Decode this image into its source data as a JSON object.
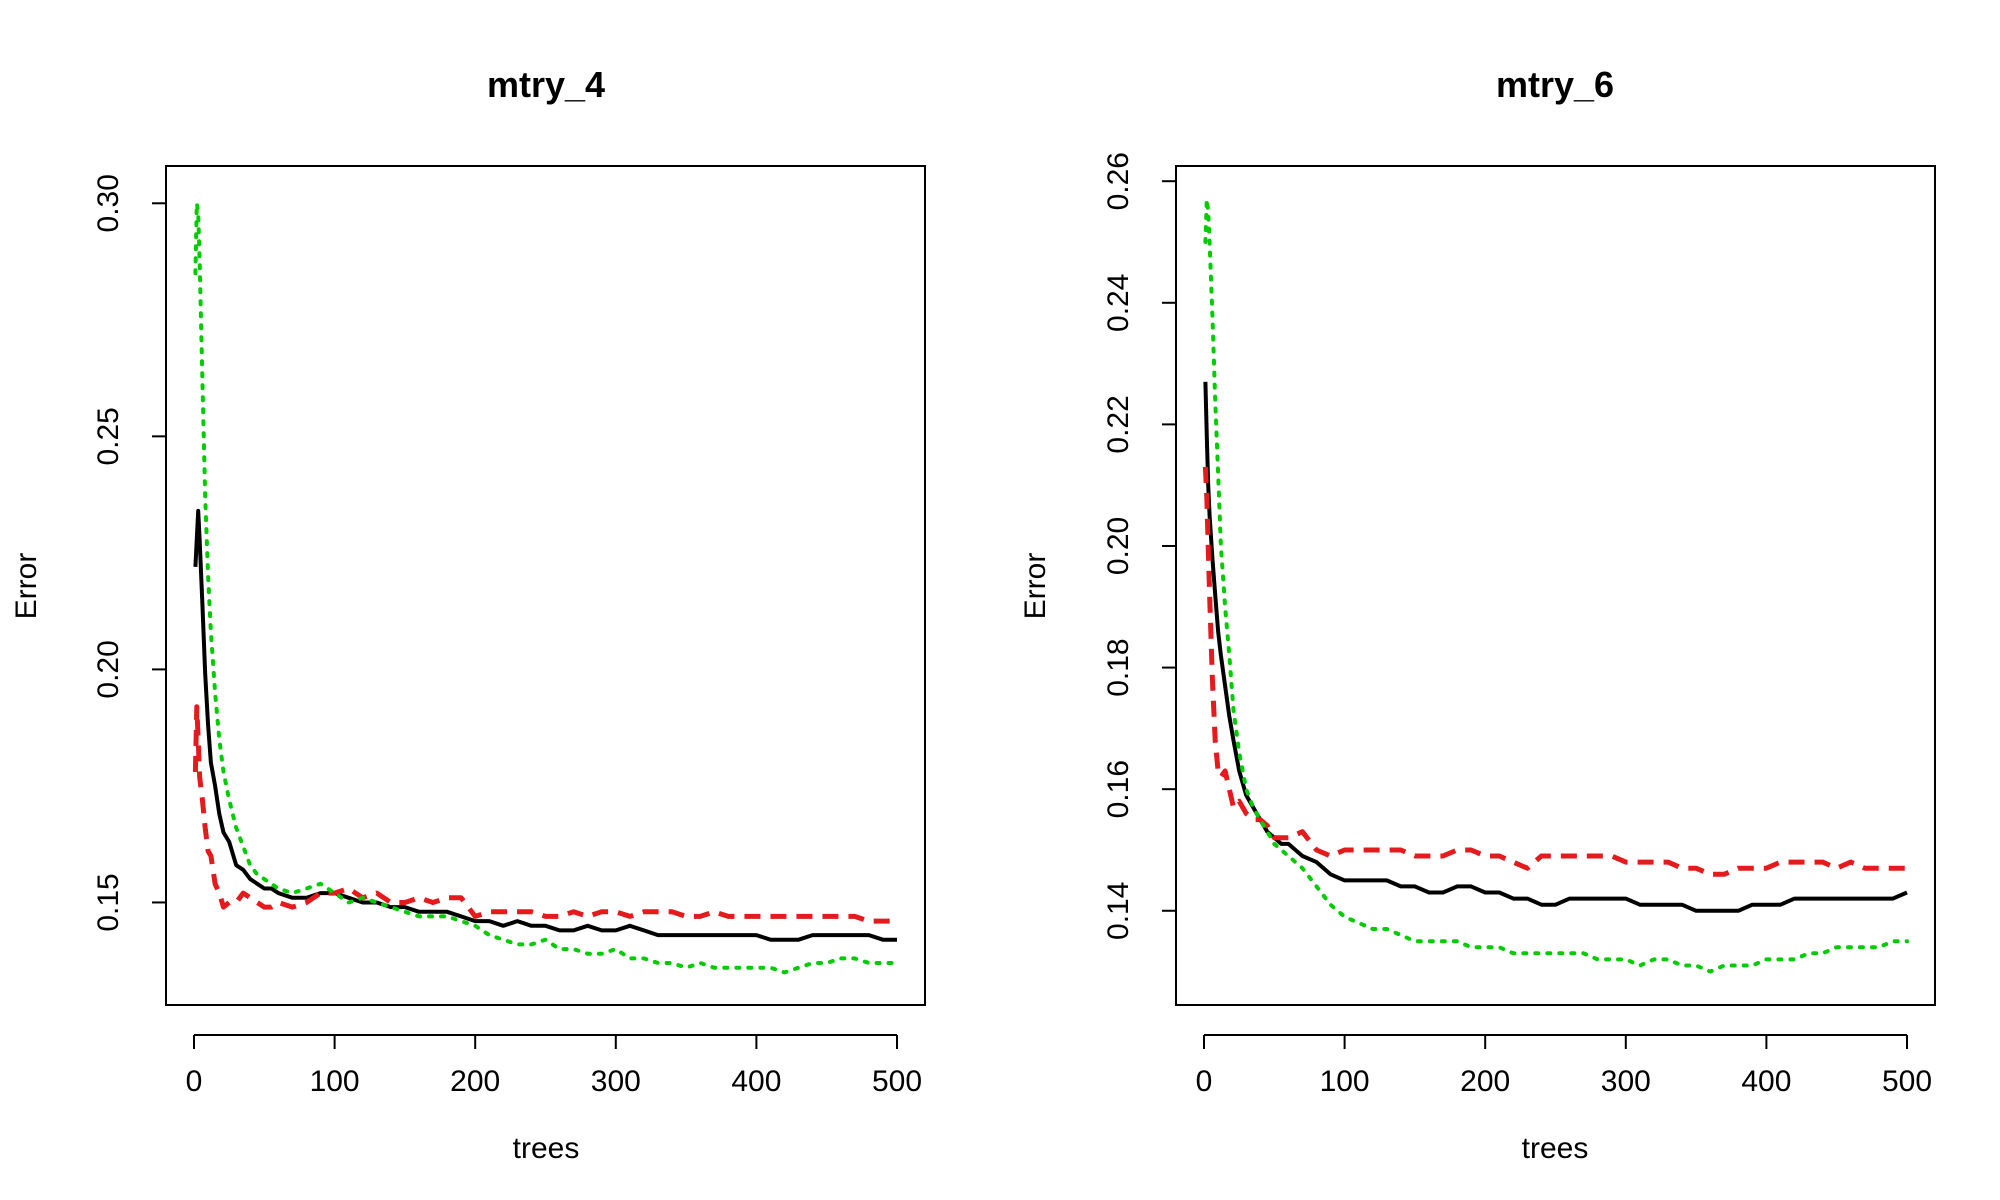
{
  "chart_data": [
    {
      "type": "line",
      "title": "mtry_4",
      "xlabel": "trees",
      "ylabel": "Error",
      "xlim": [
        0,
        500
      ],
      "ylim": [
        0.128,
        0.308
      ],
      "xticks": [
        0,
        100,
        200,
        300,
        400,
        500
      ],
      "xtick_labels": [
        "0",
        "100",
        "200",
        "300",
        "400",
        "500"
      ],
      "yticks": [
        0.15,
        0.2,
        0.25,
        0.3
      ],
      "ytick_labels": [
        "0.15",
        "0.20",
        "0.25",
        "0.30"
      ],
      "grid": false,
      "legend": "none",
      "series": [
        {
          "color": "#000000",
          "dash": "solid",
          "x": [
            1,
            2,
            3,
            4,
            6,
            8,
            10,
            12,
            15,
            18,
            21,
            25,
            30,
            35,
            40,
            45,
            50,
            55,
            60,
            70,
            80,
            90,
            100,
            110,
            120,
            130,
            140,
            150,
            160,
            170,
            180,
            190,
            200,
            210,
            220,
            230,
            240,
            250,
            260,
            270,
            280,
            290,
            300,
            310,
            320,
            330,
            340,
            350,
            360,
            370,
            380,
            390,
            400,
            410,
            420,
            430,
            440,
            450,
            460,
            470,
            480,
            490,
            500
          ],
          "y": [
            0.222,
            0.228,
            0.234,
            0.228,
            0.214,
            0.199,
            0.188,
            0.18,
            0.175,
            0.169,
            0.165,
            0.163,
            0.158,
            0.157,
            0.155,
            0.154,
            0.153,
            0.153,
            0.152,
            0.151,
            0.151,
            0.152,
            0.152,
            0.151,
            0.15,
            0.15,
            0.149,
            0.149,
            0.148,
            0.148,
            0.148,
            0.147,
            0.146,
            0.146,
            0.145,
            0.146,
            0.145,
            0.145,
            0.144,
            0.144,
            0.145,
            0.144,
            0.144,
            0.145,
            0.144,
            0.143,
            0.143,
            0.143,
            0.143,
            0.143,
            0.143,
            0.143,
            0.143,
            0.142,
            0.142,
            0.142,
            0.143,
            0.143,
            0.143,
            0.143,
            0.143,
            0.142,
            0.142
          ]
        },
        {
          "color": "#e41a1c",
          "dash": "dashed",
          "x": [
            1,
            2,
            3,
            4,
            6,
            8,
            10,
            12,
            15,
            18,
            21,
            25,
            30,
            35,
            40,
            45,
            50,
            55,
            60,
            70,
            80,
            90,
            100,
            110,
            120,
            130,
            140,
            150,
            160,
            170,
            180,
            190,
            200,
            210,
            220,
            230,
            240,
            250,
            260,
            270,
            280,
            290,
            300,
            310,
            320,
            330,
            340,
            350,
            360,
            370,
            380,
            390,
            400,
            410,
            420,
            430,
            440,
            450,
            460,
            470,
            480,
            490,
            500
          ],
          "y": [
            0.178,
            0.192,
            0.185,
            0.177,
            0.172,
            0.166,
            0.161,
            0.16,
            0.154,
            0.152,
            0.149,
            0.15,
            0.15,
            0.152,
            0.151,
            0.15,
            0.149,
            0.149,
            0.15,
            0.149,
            0.15,
            0.152,
            0.152,
            0.153,
            0.151,
            0.152,
            0.15,
            0.15,
            0.151,
            0.15,
            0.151,
            0.151,
            0.147,
            0.148,
            0.148,
            0.148,
            0.148,
            0.147,
            0.147,
            0.148,
            0.147,
            0.148,
            0.148,
            0.147,
            0.148,
            0.148,
            0.148,
            0.147,
            0.147,
            0.148,
            0.147,
            0.147,
            0.147,
            0.147,
            0.147,
            0.147,
            0.147,
            0.147,
            0.147,
            0.147,
            0.146,
            0.146,
            0.146
          ]
        },
        {
          "color": "#00cc00",
          "dash": "dotted",
          "x": [
            1,
            2,
            3,
            4,
            6,
            8,
            10,
            12,
            15,
            18,
            21,
            25,
            30,
            35,
            40,
            45,
            50,
            55,
            60,
            70,
            80,
            90,
            100,
            110,
            120,
            130,
            140,
            150,
            160,
            170,
            180,
            190,
            200,
            210,
            220,
            230,
            240,
            250,
            260,
            270,
            280,
            290,
            300,
            310,
            320,
            330,
            340,
            350,
            360,
            370,
            380,
            390,
            400,
            410,
            420,
            430,
            440,
            450,
            460,
            470,
            480,
            490,
            500
          ],
          "y": [
            0.285,
            0.3,
            0.298,
            0.288,
            0.262,
            0.237,
            0.22,
            0.208,
            0.195,
            0.185,
            0.178,
            0.172,
            0.166,
            0.162,
            0.158,
            0.156,
            0.155,
            0.154,
            0.153,
            0.152,
            0.153,
            0.154,
            0.152,
            0.15,
            0.151,
            0.15,
            0.149,
            0.148,
            0.147,
            0.147,
            0.147,
            0.146,
            0.145,
            0.143,
            0.142,
            0.141,
            0.141,
            0.142,
            0.14,
            0.14,
            0.139,
            0.139,
            0.14,
            0.138,
            0.138,
            0.137,
            0.137,
            0.136,
            0.137,
            0.136,
            0.136,
            0.136,
            0.136,
            0.136,
            0.135,
            0.136,
            0.137,
            0.137,
            0.138,
            0.138,
            0.137,
            0.137,
            0.137
          ]
        }
      ]
    },
    {
      "type": "line",
      "title": "mtry_6",
      "xlabel": "trees",
      "ylabel": "Error",
      "xlim": [
        0,
        500
      ],
      "ylim": [
        0.1245,
        0.2625
      ],
      "xticks": [
        0,
        100,
        200,
        300,
        400,
        500
      ],
      "xtick_labels": [
        "0",
        "100",
        "200",
        "300",
        "400",
        "500"
      ],
      "yticks": [
        0.14,
        0.16,
        0.18,
        0.2,
        0.22,
        0.24,
        0.26
      ],
      "ytick_labels": [
        "0.14",
        "0.16",
        "0.18",
        "0.20",
        "0.22",
        "0.24",
        "0.26"
      ],
      "grid": false,
      "legend": "none",
      "series": [
        {
          "color": "#000000",
          "dash": "solid",
          "x": [
            1,
            2,
            3,
            4,
            6,
            8,
            10,
            12,
            15,
            18,
            21,
            25,
            30,
            35,
            40,
            45,
            50,
            55,
            60,
            70,
            80,
            90,
            100,
            110,
            120,
            130,
            140,
            150,
            160,
            170,
            180,
            190,
            200,
            210,
            220,
            230,
            240,
            250,
            260,
            270,
            280,
            290,
            300,
            310,
            320,
            330,
            340,
            350,
            360,
            370,
            380,
            390,
            400,
            410,
            420,
            430,
            440,
            450,
            460,
            470,
            480,
            490,
            500
          ],
          "y": [
            0.227,
            0.218,
            0.21,
            0.205,
            0.198,
            0.192,
            0.186,
            0.182,
            0.177,
            0.172,
            0.168,
            0.163,
            0.159,
            0.157,
            0.155,
            0.153,
            0.152,
            0.151,
            0.151,
            0.149,
            0.148,
            0.146,
            0.145,
            0.145,
            0.145,
            0.145,
            0.144,
            0.144,
            0.143,
            0.143,
            0.144,
            0.144,
            0.143,
            0.143,
            0.142,
            0.142,
            0.141,
            0.141,
            0.142,
            0.142,
            0.142,
            0.142,
            0.142,
            0.141,
            0.141,
            0.141,
            0.141,
            0.14,
            0.14,
            0.14,
            0.14,
            0.141,
            0.141,
            0.141,
            0.142,
            0.142,
            0.142,
            0.142,
            0.142,
            0.142,
            0.142,
            0.142,
            0.143
          ]
        },
        {
          "color": "#e41a1c",
          "dash": "dashed",
          "x": [
            1,
            2,
            3,
            4,
            6,
            8,
            10,
            12,
            15,
            18,
            21,
            25,
            30,
            35,
            40,
            45,
            50,
            55,
            60,
            70,
            80,
            90,
            100,
            110,
            120,
            130,
            140,
            150,
            160,
            170,
            180,
            190,
            200,
            210,
            220,
            230,
            240,
            250,
            260,
            270,
            280,
            290,
            300,
            310,
            320,
            330,
            340,
            350,
            360,
            370,
            380,
            390,
            400,
            410,
            420,
            430,
            440,
            450,
            460,
            470,
            480,
            490,
            500
          ],
          "y": [
            0.213,
            0.208,
            0.2,
            0.192,
            0.178,
            0.168,
            0.163,
            0.162,
            0.163,
            0.16,
            0.157,
            0.158,
            0.156,
            0.155,
            0.155,
            0.154,
            0.152,
            0.152,
            0.152,
            0.153,
            0.15,
            0.149,
            0.15,
            0.15,
            0.15,
            0.15,
            0.15,
            0.149,
            0.149,
            0.149,
            0.15,
            0.15,
            0.149,
            0.149,
            0.148,
            0.147,
            0.149,
            0.149,
            0.149,
            0.149,
            0.149,
            0.149,
            0.148,
            0.148,
            0.148,
            0.148,
            0.147,
            0.147,
            0.146,
            0.146,
            0.147,
            0.147,
            0.147,
            0.148,
            0.148,
            0.148,
            0.148,
            0.147,
            0.148,
            0.147,
            0.147,
            0.147,
            0.147
          ]
        },
        {
          "color": "#00cc00",
          "dash": "dotted",
          "x": [
            1,
            2,
            3,
            4,
            6,
            8,
            10,
            12,
            15,
            18,
            21,
            25,
            30,
            35,
            40,
            45,
            50,
            55,
            60,
            70,
            80,
            90,
            100,
            110,
            120,
            130,
            140,
            150,
            160,
            170,
            180,
            190,
            200,
            210,
            220,
            230,
            240,
            250,
            260,
            270,
            280,
            290,
            300,
            310,
            320,
            330,
            340,
            350,
            360,
            370,
            380,
            390,
            400,
            410,
            420,
            430,
            440,
            450,
            460,
            470,
            480,
            490,
            500
          ],
          "y": [
            0.25,
            0.257,
            0.255,
            0.25,
            0.238,
            0.224,
            0.212,
            0.2,
            0.19,
            0.182,
            0.173,
            0.166,
            0.16,
            0.157,
            0.155,
            0.153,
            0.151,
            0.15,
            0.149,
            0.147,
            0.144,
            0.141,
            0.139,
            0.138,
            0.137,
            0.137,
            0.136,
            0.135,
            0.135,
            0.135,
            0.135,
            0.134,
            0.134,
            0.134,
            0.133,
            0.133,
            0.133,
            0.133,
            0.133,
            0.133,
            0.132,
            0.132,
            0.132,
            0.131,
            0.132,
            0.132,
            0.131,
            0.131,
            0.13,
            0.131,
            0.131,
            0.131,
            0.132,
            0.132,
            0.132,
            0.133,
            0.133,
            0.134,
            0.134,
            0.134,
            0.134,
            0.135,
            0.135
          ]
        }
      ]
    }
  ]
}
